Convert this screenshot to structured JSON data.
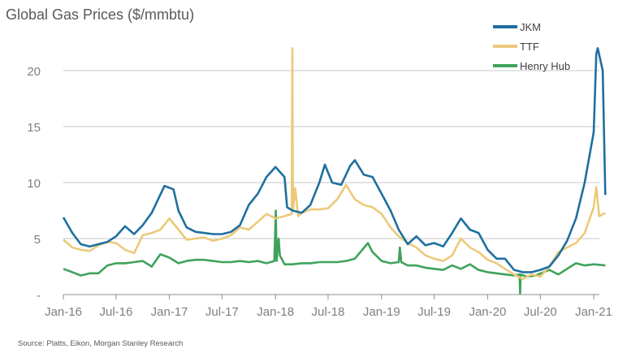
{
  "chart_data": {
    "type": "line",
    "title": "Global Gas Prices ($/mmbtu)",
    "source": "Source: Platts, Eikon, Morgan Stanley Research",
    "xlabel": "",
    "ylabel": "",
    "ylim": [
      0,
      22
    ],
    "xlim": [
      "2016-01-01",
      "2021-02-10"
    ],
    "grid": true,
    "legend_position": "top-right",
    "y_ticks": [
      {
        "value": 0,
        "label": "-"
      },
      {
        "value": 5,
        "label": "5"
      },
      {
        "value": 10,
        "label": "10"
      },
      {
        "value": 15,
        "label": "15"
      },
      {
        "value": 20,
        "label": "20"
      }
    ],
    "x_ticks": [
      {
        "date": "2016-01-01",
        "label": "Jan-16"
      },
      {
        "date": "2016-07-01",
        "label": "Jul-16"
      },
      {
        "date": "2017-01-01",
        "label": "Jan-17"
      },
      {
        "date": "2017-07-01",
        "label": "Jul-17"
      },
      {
        "date": "2018-01-01",
        "label": "Jan-18"
      },
      {
        "date": "2018-07-01",
        "label": "Jul-18"
      },
      {
        "date": "2019-01-01",
        "label": "Jan-19"
      },
      {
        "date": "2019-07-01",
        "label": "Jul-19"
      },
      {
        "date": "2020-01-01",
        "label": "Jan-20"
      },
      {
        "date": "2020-07-01",
        "label": "Jul-20"
      },
      {
        "date": "2021-01-01",
        "label": "Jan-21"
      }
    ],
    "series": [
      {
        "name": "JKM",
        "color": "#1f6f9f",
        "points": [
          [
            "2016-01-01",
            6.9
          ],
          [
            "2016-02-01",
            5.5
          ],
          [
            "2016-03-01",
            4.5
          ],
          [
            "2016-04-01",
            4.3
          ],
          [
            "2016-05-01",
            4.5
          ],
          [
            "2016-06-01",
            4.7
          ],
          [
            "2016-07-01",
            5.2
          ],
          [
            "2016-08-01",
            6.1
          ],
          [
            "2016-09-01",
            5.4
          ],
          [
            "2016-10-01",
            6.2
          ],
          [
            "2016-11-01",
            7.3
          ],
          [
            "2016-12-15",
            9.7
          ],
          [
            "2017-01-15",
            9.4
          ],
          [
            "2017-02-01",
            7.5
          ],
          [
            "2017-03-01",
            6.0
          ],
          [
            "2017-04-01",
            5.6
          ],
          [
            "2017-05-01",
            5.5
          ],
          [
            "2017-06-01",
            5.4
          ],
          [
            "2017-07-01",
            5.4
          ],
          [
            "2017-08-01",
            5.6
          ],
          [
            "2017-09-01",
            6.2
          ],
          [
            "2017-10-01",
            8.0
          ],
          [
            "2017-11-01",
            9.0
          ],
          [
            "2017-12-01",
            10.5
          ],
          [
            "2018-01-01",
            11.4
          ],
          [
            "2018-02-01",
            10.5
          ],
          [
            "2018-02-10",
            7.8
          ],
          [
            "2018-03-01",
            7.5
          ],
          [
            "2018-04-01",
            7.3
          ],
          [
            "2018-05-01",
            8.0
          ],
          [
            "2018-06-01",
            10.0
          ],
          [
            "2018-06-20",
            11.6
          ],
          [
            "2018-07-15",
            10.0
          ],
          [
            "2018-08-15",
            9.8
          ],
          [
            "2018-09-15",
            11.5
          ],
          [
            "2018-10-01",
            12.0
          ],
          [
            "2018-11-01",
            10.7
          ],
          [
            "2018-12-01",
            10.5
          ],
          [
            "2019-01-01",
            9.0
          ],
          [
            "2019-02-01",
            7.5
          ],
          [
            "2019-03-01",
            5.8
          ],
          [
            "2019-04-01",
            4.5
          ],
          [
            "2019-05-01",
            5.2
          ],
          [
            "2019-06-01",
            4.4
          ],
          [
            "2019-07-01",
            4.6
          ],
          [
            "2019-08-01",
            4.3
          ],
          [
            "2019-09-01",
            5.5
          ],
          [
            "2019-10-01",
            6.8
          ],
          [
            "2019-11-01",
            5.8
          ],
          [
            "2019-12-01",
            5.5
          ],
          [
            "2020-01-01",
            4.0
          ],
          [
            "2020-02-01",
            3.2
          ],
          [
            "2020-03-01",
            3.2
          ],
          [
            "2020-04-01",
            2.2
          ],
          [
            "2020-05-01",
            2.0
          ],
          [
            "2020-06-01",
            2.0
          ],
          [
            "2020-07-01",
            2.2
          ],
          [
            "2020-08-01",
            2.5
          ],
          [
            "2020-09-01",
            3.5
          ],
          [
            "2020-10-01",
            4.8
          ],
          [
            "2020-11-01",
            6.8
          ],
          [
            "2020-12-01",
            10.0
          ],
          [
            "2021-01-01",
            14.5
          ],
          [
            "2021-01-10",
            21.5
          ],
          [
            "2021-01-15",
            22.0
          ],
          [
            "2021-02-01",
            20.0
          ],
          [
            "2021-02-10",
            8.9
          ]
        ]
      },
      {
        "name": "TTF",
        "color": "#ecc97a",
        "points": [
          [
            "2016-01-01",
            4.9
          ],
          [
            "2016-02-01",
            4.2
          ],
          [
            "2016-03-01",
            4.0
          ],
          [
            "2016-04-01",
            3.9
          ],
          [
            "2016-05-01",
            4.4
          ],
          [
            "2016-06-01",
            4.7
          ],
          [
            "2016-07-01",
            4.6
          ],
          [
            "2016-08-01",
            4.0
          ],
          [
            "2016-09-01",
            3.7
          ],
          [
            "2016-10-01",
            5.3
          ],
          [
            "2016-11-01",
            5.5
          ],
          [
            "2016-12-01",
            5.8
          ],
          [
            "2017-01-01",
            6.8
          ],
          [
            "2017-02-01",
            5.8
          ],
          [
            "2017-03-01",
            4.9
          ],
          [
            "2017-04-01",
            5.0
          ],
          [
            "2017-05-01",
            5.1
          ],
          [
            "2017-06-01",
            4.8
          ],
          [
            "2017-07-01",
            5.0
          ],
          [
            "2017-08-01",
            5.3
          ],
          [
            "2017-09-01",
            6.0
          ],
          [
            "2017-10-01",
            5.8
          ],
          [
            "2017-11-01",
            6.5
          ],
          [
            "2017-12-01",
            7.2
          ],
          [
            "2018-01-01",
            6.8
          ],
          [
            "2018-02-01",
            7.0
          ],
          [
            "2018-02-26",
            7.2
          ],
          [
            "2018-02-28",
            22.0
          ],
          [
            "2018-03-02",
            7.5
          ],
          [
            "2018-03-10",
            9.5
          ],
          [
            "2018-03-20",
            7.0
          ],
          [
            "2018-04-01",
            7.3
          ],
          [
            "2018-05-01",
            7.6
          ],
          [
            "2018-06-01",
            7.6
          ],
          [
            "2018-07-01",
            7.7
          ],
          [
            "2018-08-01",
            8.5
          ],
          [
            "2018-09-01",
            9.8
          ],
          [
            "2018-10-01",
            8.5
          ],
          [
            "2018-11-01",
            8.0
          ],
          [
            "2018-12-01",
            7.8
          ],
          [
            "2019-01-01",
            7.2
          ],
          [
            "2019-02-01",
            6.0
          ],
          [
            "2019-03-01",
            5.2
          ],
          [
            "2019-04-01",
            4.6
          ],
          [
            "2019-05-01",
            4.2
          ],
          [
            "2019-06-01",
            3.5
          ],
          [
            "2019-07-01",
            3.2
          ],
          [
            "2019-08-01",
            3.0
          ],
          [
            "2019-09-01",
            3.5
          ],
          [
            "2019-10-01",
            5.0
          ],
          [
            "2019-11-01",
            4.2
          ],
          [
            "2019-12-01",
            3.8
          ],
          [
            "2020-01-01",
            3.1
          ],
          [
            "2020-02-01",
            2.8
          ],
          [
            "2020-03-01",
            2.3
          ],
          [
            "2020-04-01",
            1.8
          ],
          [
            "2020-05-01",
            1.4
          ],
          [
            "2020-06-01",
            1.8
          ],
          [
            "2020-07-01",
            1.6
          ],
          [
            "2020-08-01",
            2.5
          ],
          [
            "2020-09-01",
            3.8
          ],
          [
            "2020-10-01",
            4.2
          ],
          [
            "2020-11-01",
            4.6
          ],
          [
            "2020-12-01",
            5.5
          ],
          [
            "2021-01-01",
            7.8
          ],
          [
            "2021-01-10",
            9.6
          ],
          [
            "2021-01-20",
            7.0
          ],
          [
            "2021-02-10",
            7.3
          ]
        ]
      },
      {
        "name": "Henry Hub",
        "color": "#3fa35b",
        "points": [
          [
            "2016-01-01",
            2.3
          ],
          [
            "2016-02-01",
            2.0
          ],
          [
            "2016-03-01",
            1.7
          ],
          [
            "2016-04-01",
            1.9
          ],
          [
            "2016-05-01",
            1.9
          ],
          [
            "2016-06-01",
            2.6
          ],
          [
            "2016-07-01",
            2.8
          ],
          [
            "2016-08-01",
            2.8
          ],
          [
            "2016-09-01",
            2.9
          ],
          [
            "2016-10-01",
            3.0
          ],
          [
            "2016-11-01",
            2.5
          ],
          [
            "2016-12-01",
            3.6
          ],
          [
            "2017-01-01",
            3.3
          ],
          [
            "2017-02-01",
            2.8
          ],
          [
            "2017-03-01",
            3.0
          ],
          [
            "2017-04-01",
            3.1
          ],
          [
            "2017-05-01",
            3.1
          ],
          [
            "2017-06-01",
            3.0
          ],
          [
            "2017-07-01",
            2.9
          ],
          [
            "2017-08-01",
            2.9
          ],
          [
            "2017-09-01",
            3.0
          ],
          [
            "2017-10-01",
            2.9
          ],
          [
            "2017-11-01",
            3.0
          ],
          [
            "2017-12-01",
            2.8
          ],
          [
            "2017-12-28",
            3.0
          ],
          [
            "2018-01-02",
            7.5
          ],
          [
            "2018-01-05",
            3.0
          ],
          [
            "2018-01-12",
            5.0
          ],
          [
            "2018-01-16",
            3.5
          ],
          [
            "2018-02-01",
            2.7
          ],
          [
            "2018-03-01",
            2.7
          ],
          [
            "2018-04-01",
            2.8
          ],
          [
            "2018-05-01",
            2.8
          ],
          [
            "2018-06-01",
            2.9
          ],
          [
            "2018-07-01",
            2.9
          ],
          [
            "2018-08-01",
            2.9
          ],
          [
            "2018-09-01",
            3.0
          ],
          [
            "2018-10-01",
            3.2
          ],
          [
            "2018-11-15",
            4.6
          ],
          [
            "2018-12-01",
            3.8
          ],
          [
            "2019-01-01",
            3.0
          ],
          [
            "2019-02-01",
            2.8
          ],
          [
            "2019-03-01",
            2.9
          ],
          [
            "2019-03-05",
            4.2
          ],
          [
            "2019-03-10",
            2.9
          ],
          [
            "2019-04-01",
            2.6
          ],
          [
            "2019-05-01",
            2.6
          ],
          [
            "2019-06-01",
            2.4
          ],
          [
            "2019-07-01",
            2.3
          ],
          [
            "2019-08-01",
            2.2
          ],
          [
            "2019-09-01",
            2.6
          ],
          [
            "2019-10-01",
            2.3
          ],
          [
            "2019-11-01",
            2.7
          ],
          [
            "2019-12-01",
            2.2
          ],
          [
            "2020-01-01",
            2.0
          ],
          [
            "2020-02-01",
            1.9
          ],
          [
            "2020-03-01",
            1.8
          ],
          [
            "2020-04-01",
            1.7
          ],
          [
            "2020-04-20",
            1.8
          ],
          [
            "2020-04-22",
            0.1
          ],
          [
            "2020-04-24",
            1.8
          ],
          [
            "2020-05-15",
            1.6
          ],
          [
            "2020-06-15",
            1.7
          ],
          [
            "2020-08-01",
            2.2
          ],
          [
            "2020-09-01",
            1.8
          ],
          [
            "2020-10-01",
            2.3
          ],
          [
            "2020-11-01",
            2.8
          ],
          [
            "2020-12-01",
            2.6
          ],
          [
            "2021-01-01",
            2.7
          ],
          [
            "2021-02-10",
            2.6
          ]
        ]
      }
    ]
  }
}
